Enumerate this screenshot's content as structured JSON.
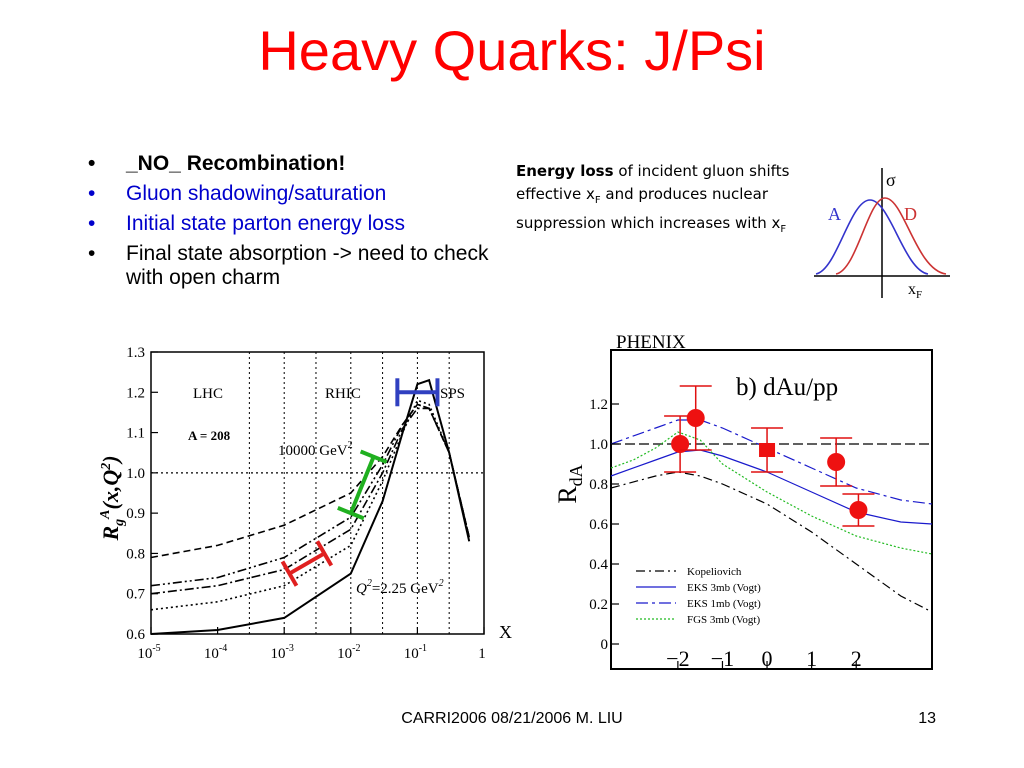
{
  "slide": {
    "title": "Heavy Quarks: J/Psi",
    "bullets": [
      {
        "bullet": "•",
        "text": "_NO_ Recombination!",
        "color": "#000000",
        "bold": true
      },
      {
        "bullet": "•",
        "text": "Gluon shadowing/saturation",
        "color": "#0000cc",
        "bold": false
      },
      {
        "bullet": "•",
        "text": "Initial state parton energy loss",
        "color": "#0000cc",
        "bold": false
      },
      {
        "bullet": "•",
        "text": "Final state absorption -> need to check with open charm",
        "color": "#000000",
        "bold": false
      }
    ],
    "note": {
      "bold": "Energy loss",
      "t1": " of incident gluon shifts effective x",
      "sub1": "F",
      "t2": "  and produces nuclear suppression which increases with x",
      "sub2": "F"
    },
    "footer": {
      "center": "CARRI2006 08/21/2006   M. LIU",
      "page": "13"
    }
  },
  "sigma_diagram": {
    "sigma": "σ",
    "a": "A",
    "d": "D",
    "x": "x",
    "xsub": "F",
    "colors": {
      "a": "#3333cc",
      "d": "#cc3333"
    }
  },
  "left_chart": {
    "ylabel": "R",
    "ylabel_sub": "g",
    "ylabel_sup": "A",
    "ylabel_tail": "(x,Q",
    "ylabel_sup2": "2",
    "ylabel_end": ")",
    "region_labels": [
      "LHC",
      "RHIC",
      "SPS"
    ],
    "a_label": "A = 208",
    "q_high": "10000 GeV",
    "q_high_sup": "2",
    "q_low": "Q",
    "q_low_sup": "2",
    "q_low_tail": "=2.25 GeV",
    "q_low_sup2": "2",
    "x_axis_label": "X",
    "ytick_labels": [
      "0.6",
      "0.7",
      "0.8",
      "0.9",
      "1.0",
      "1.1",
      "1.2",
      "1.3"
    ],
    "xtick_bases": [
      "10",
      "10",
      "10",
      "10",
      "10",
      "1"
    ],
    "xtick_exps": [
      "-5",
      "-4",
      "-3",
      "-2",
      "-1",
      ""
    ],
    "chart_data": {
      "type": "line",
      "xscale": "log",
      "xlim": [
        1e-05,
        1
      ],
      "ylim": [
        0.6,
        1.3
      ],
      "series": [
        {
          "style": "solid",
          "x": [
            1e-05,
            0.0001,
            0.001,
            0.01,
            0.03,
            0.06,
            0.1,
            0.15,
            0.3,
            0.6
          ],
          "y": [
            0.6,
            0.61,
            0.64,
            0.75,
            0.93,
            1.1,
            1.22,
            1.23,
            1.05,
            0.83
          ]
        },
        {
          "style": "dotted",
          "x": [
            1e-05,
            0.0001,
            0.001,
            0.01,
            0.03,
            0.06,
            0.1,
            0.15,
            0.3,
            0.6
          ],
          "y": [
            0.66,
            0.68,
            0.72,
            0.82,
            0.98,
            1.1,
            1.18,
            1.17,
            1.05,
            0.84
          ]
        },
        {
          "style": "dashdot",
          "x": [
            1e-05,
            0.0001,
            0.001,
            0.01,
            0.03,
            0.06,
            0.1,
            0.15,
            0.3,
            0.6
          ],
          "y": [
            0.7,
            0.72,
            0.76,
            0.86,
            1.0,
            1.11,
            1.16,
            1.16,
            1.05,
            0.84
          ]
        },
        {
          "style": "dashdotdot",
          "x": [
            1e-05,
            0.0001,
            0.001,
            0.01,
            0.03,
            0.06,
            0.1,
            0.15,
            0.3,
            0.6
          ],
          "y": [
            0.72,
            0.74,
            0.79,
            0.89,
            1.02,
            1.12,
            1.17,
            1.16,
            1.05,
            0.84
          ]
        },
        {
          "style": "dashed",
          "x": [
            1e-05,
            0.0001,
            0.001,
            0.01,
            0.03,
            0.06,
            0.1,
            0.15,
            0.3,
            0.6
          ],
          "y": [
            0.79,
            0.82,
            0.87,
            0.95,
            1.04,
            1.12,
            1.17,
            1.16,
            1.05,
            0.84
          ]
        }
      ],
      "ranges": [
        {
          "color": "#e02020",
          "x": [
            0.0012,
            0.004
          ],
          "y": [
            0.75,
            0.8
          ]
        },
        {
          "color": "#20b020",
          "x": [
            0.01,
            0.022
          ],
          "y": [
            0.9,
            1.04
          ]
        },
        {
          "color": "#3040c0",
          "x": [
            0.05,
            0.2
          ],
          "y": [
            1.2,
            1.2
          ]
        }
      ]
    }
  },
  "right_chart": {
    "title": "PHENIX",
    "panel": "b) dAu/pp",
    "ylabel": "R",
    "ylabel_sub": "dA",
    "ytick_labels": [
      "0",
      "0.2",
      "0.4",
      "0.6",
      "0.8",
      "1.0",
      "1.2"
    ],
    "xtick_labels": [
      "−2",
      "−1",
      "0",
      "1",
      "2"
    ],
    "legend": [
      "Kopeliovich",
      "EKS 3mb (Vogt)",
      "EKS 1mb (Vogt)",
      "FGS 3mb (Vogt)"
    ],
    "chart_data": {
      "type": "scatter",
      "xlim": [
        -3.5,
        3.7
      ],
      "ylim": [
        0,
        1.45
      ],
      "series": [
        {
          "name": "Kopeliovich",
          "x": [
            -3.5,
            -2.5,
            -2,
            -1.5,
            -1,
            0,
            1,
            2,
            3,
            3.7
          ],
          "y": [
            0.78,
            0.84,
            0.86,
            0.84,
            0.8,
            0.7,
            0.56,
            0.4,
            0.24,
            0.16
          ]
        },
        {
          "name": "EKS 3mb (Vogt)",
          "x": [
            -3.5,
            -2.5,
            -2,
            -1.5,
            -1,
            0,
            1,
            2,
            3,
            3.7
          ],
          "y": [
            0.84,
            0.92,
            0.96,
            0.97,
            0.94,
            0.86,
            0.76,
            0.66,
            0.61,
            0.6
          ]
        },
        {
          "name": "EKS 1mb (Vogt)",
          "x": [
            -3.5,
            -2.5,
            -2,
            -1.5,
            -1,
            0,
            1,
            2,
            3,
            3.7
          ],
          "y": [
            1.0,
            1.08,
            1.12,
            1.12,
            1.08,
            0.98,
            0.88,
            0.78,
            0.72,
            0.7
          ]
        },
        {
          "name": "FGS 3mb (Vogt)",
          "x": [
            -3.5,
            -3,
            -2.5,
            -2,
            -1.5,
            -1,
            0,
            1,
            2,
            3,
            3.7
          ],
          "y": [
            0.88,
            0.92,
            0.98,
            1.06,
            1.02,
            0.9,
            0.76,
            0.64,
            0.54,
            0.48,
            0.45
          ]
        }
      ],
      "points": [
        {
          "x": -1.95,
          "y": 1.0,
          "err": 0.14,
          "marker": "circle"
        },
        {
          "x": -1.6,
          "y": 1.13,
          "err": 0.16,
          "marker": "circle"
        },
        {
          "x": 0.0,
          "y": 0.97,
          "err": 0.11,
          "marker": "square"
        },
        {
          "x": 1.55,
          "y": 0.91,
          "err": 0.12,
          "marker": "circle"
        },
        {
          "x": 2.05,
          "y": 0.67,
          "err": 0.08,
          "marker": "circle"
        }
      ],
      "reference_line": 1.0
    }
  }
}
